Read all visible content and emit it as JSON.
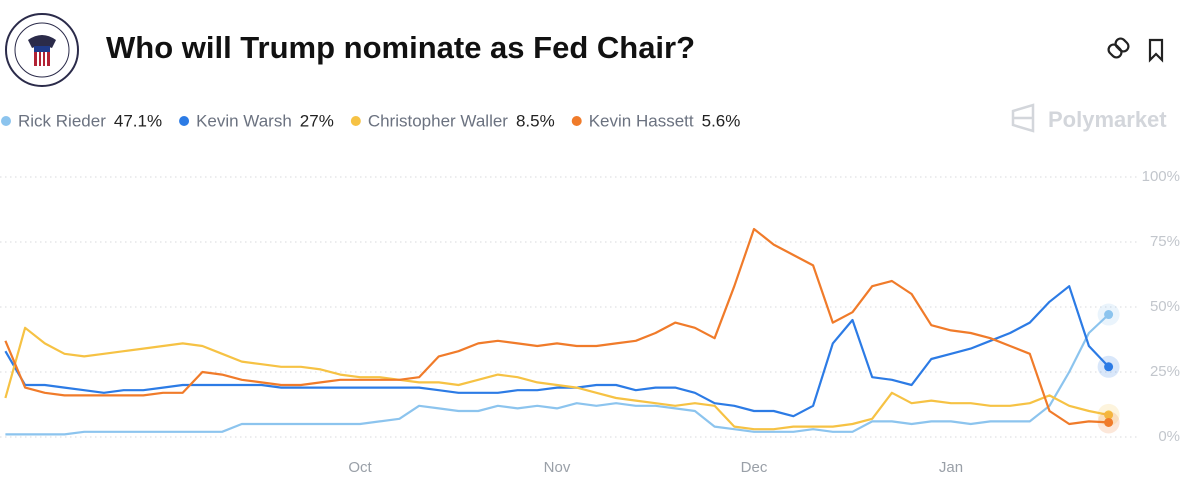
{
  "chart_data": {
    "type": "line",
    "title": "Who will Trump nominate as Fed Chair?",
    "brand": "Polymarket",
    "categories": [
      null,
      null,
      null,
      null,
      null,
      null,
      null,
      null,
      null,
      null,
      null,
      null,
      null,
      null,
      null,
      null,
      null,
      null,
      "Oct",
      null,
      null,
      null,
      null,
      null,
      null,
      null,
      null,
      null,
      "Nov",
      null,
      null,
      null,
      null,
      null,
      null,
      null,
      null,
      null,
      "Dec",
      null,
      null,
      null,
      null,
      null,
      null,
      null,
      null,
      null,
      "Jan",
      null,
      null,
      null,
      null,
      null,
      null,
      null,
      null
    ],
    "ylim": [
      0,
      100
    ],
    "yticks": [
      {
        "value": 0,
        "label": "0%"
      },
      {
        "value": 25,
        "label": "25%"
      },
      {
        "value": 50,
        "label": "50%"
      },
      {
        "value": 75,
        "label": "75%"
      },
      {
        "value": 100,
        "label": "100%"
      }
    ],
    "grid": true,
    "series": [
      {
        "name": "Rick Rieder",
        "color": "#8cc4ee",
        "latest_label": "47.1%",
        "values": [
          1,
          1,
          1,
          1,
          2,
          2,
          2,
          2,
          2,
          2,
          2,
          2,
          5,
          5,
          5,
          5,
          5,
          5,
          5,
          6,
          7,
          12,
          11,
          10,
          10,
          12,
          11,
          12,
          11,
          13,
          12,
          13,
          12,
          12,
          11,
          10,
          4,
          3,
          2,
          2,
          2,
          3,
          2,
          2,
          6,
          6,
          5,
          6,
          6,
          5,
          6,
          6,
          6,
          12,
          25,
          40,
          47.1
        ]
      },
      {
        "name": "Kevin Warsh",
        "color": "#2c7be5",
        "latest_label": "27%",
        "values": [
          33,
          20,
          20,
          19,
          18,
          17,
          18,
          18,
          19,
          20,
          20,
          20,
          20,
          20,
          19,
          19,
          19,
          19,
          19,
          19,
          19,
          19,
          18,
          17,
          17,
          17,
          18,
          18,
          19,
          19,
          20,
          20,
          18,
          19,
          19,
          17,
          13,
          12,
          10,
          10,
          8,
          12,
          36,
          45,
          23,
          22,
          20,
          30,
          32,
          34,
          37,
          40,
          44,
          52,
          58,
          35,
          27
        ]
      },
      {
        "name": "Christopher Waller",
        "color": "#f6c244",
        "latest_label": "8.5%",
        "values": [
          15,
          42,
          36,
          32,
          31,
          32,
          33,
          34,
          35,
          36,
          35,
          32,
          29,
          28,
          27,
          27,
          26,
          24,
          23,
          23,
          22,
          21,
          21,
          20,
          22,
          24,
          23,
          21,
          20,
          19,
          17,
          15,
          14,
          13,
          12,
          13,
          12,
          4,
          3,
          3,
          4,
          4,
          4,
          5,
          7,
          17,
          13,
          14,
          13,
          13,
          12,
          12,
          13,
          16,
          12,
          10,
          8.5
        ]
      },
      {
        "name": "Kevin Hassett",
        "color": "#f07b2a",
        "latest_label": "5.6%",
        "values": [
          37,
          19,
          17,
          16,
          16,
          16,
          16,
          16,
          17,
          17,
          25,
          24,
          22,
          21,
          20,
          20,
          21,
          22,
          22,
          22,
          22,
          23,
          31,
          33,
          36,
          37,
          36,
          35,
          36,
          35,
          35,
          36,
          37,
          40,
          44,
          42,
          38,
          58,
          80,
          74,
          70,
          66,
          44,
          48,
          58,
          60,
          55,
          43,
          41,
          40,
          38,
          35,
          32,
          10,
          5,
          6,
          5.6
        ]
      }
    ]
  }
}
